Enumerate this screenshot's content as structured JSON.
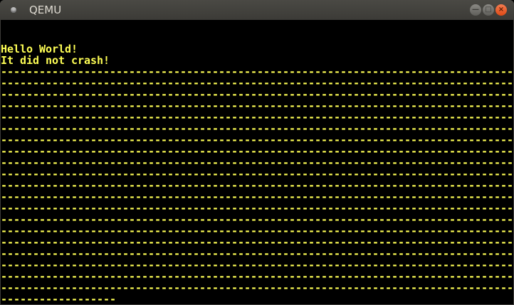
{
  "window": {
    "title": "QEMU",
    "minimize_glyph": "—",
    "maximize_glyph": "□",
    "close_glyph": "×"
  },
  "colors": {
    "text": "#ffff55",
    "background": "#000000",
    "close_button": "#df4a16"
  },
  "screen": {
    "lines": [
      "",
      "",
      "Hello World!",
      "It did not crash!",
      "--------------------------------------------------------------------------------",
      "--------------------------------------------------------------------------------",
      "--------------------------------------------------------------------------------",
      "--------------------------------------------------------------------------------",
      "--------------------------------------------------------------------------------",
      "--------------------------------------------------------------------------------",
      "--------------------------------------------------------------------------------",
      "--------------------------------------------------------------------------------",
      "--------------------------------------------------------------------------------",
      "--------------------------------------------------------------------------------",
      "--------------------------------------------------------------------------------",
      "--------------------------------------------------------------------------------",
      "--------------------------------------------------------------------------------",
      "--------------------------------------------------------------------------------",
      "--------------------------------------------------------------------------------",
      "--------------------------------------------------------------------------------",
      "--------------------------------------------------------------------------------",
      "--------------------------------------------------------------------------------",
      "--------------------------------------------------------------------------------",
      "--------------------------------------------------------------------------------",
      "------------------"
    ]
  }
}
